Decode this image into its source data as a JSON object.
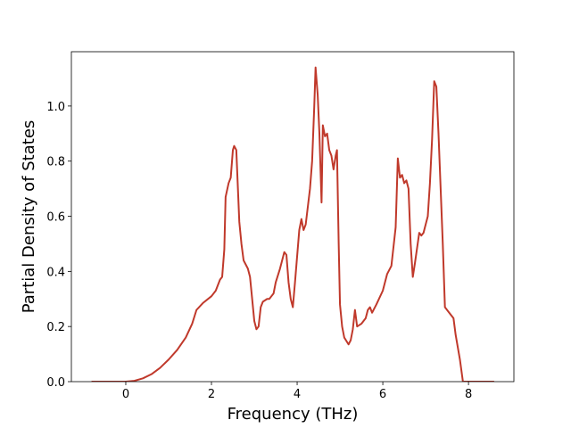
{
  "chart_data": {
    "type": "line",
    "xlabel": "Frequency (THz)",
    "ylabel": "Partial Density of States",
    "x": [
      -0.8,
      0,
      0.2,
      0.4,
      0.6,
      0.8,
      1.0,
      1.2,
      1.4,
      1.55,
      1.65,
      1.8,
      2.0,
      2.1,
      2.2,
      2.25,
      2.3,
      2.33,
      2.4,
      2.45,
      2.5,
      2.53,
      2.58,
      2.65,
      2.7,
      2.75,
      2.85,
      2.9,
      2.95,
      3.0,
      3.05,
      3.1,
      3.15,
      3.2,
      3.3,
      3.35,
      3.4,
      3.45,
      3.5,
      3.6,
      3.7,
      3.75,
      3.8,
      3.85,
      3.9,
      3.95,
      4.05,
      4.1,
      4.15,
      4.2,
      4.3,
      4.35,
      4.4,
      4.43,
      4.48,
      4.52,
      4.57,
      4.6,
      4.65,
      4.7,
      4.75,
      4.8,
      4.85,
      4.9,
      4.93,
      4.97,
      5.0,
      5.05,
      5.1,
      5.2,
      5.25,
      5.3,
      5.35,
      5.4,
      5.5,
      5.6,
      5.65,
      5.7,
      5.75,
      5.85,
      6.0,
      6.1,
      6.2,
      6.3,
      6.35,
      6.4,
      6.45,
      6.5,
      6.55,
      6.6,
      6.65,
      6.7,
      6.75,
      6.85,
      6.9,
      6.95,
      7.05,
      7.1,
      7.15,
      7.2,
      7.25,
      7.3,
      7.4,
      7.45,
      7.55,
      7.65,
      7.7,
      7.8,
      7.87,
      8.6
    ],
    "values": [
      0,
      0,
      0.003,
      0.012,
      0.027,
      0.05,
      0.08,
      0.115,
      0.16,
      0.21,
      0.26,
      0.285,
      0.31,
      0.33,
      0.37,
      0.38,
      0.48,
      0.67,
      0.72,
      0.74,
      0.84,
      0.855,
      0.84,
      0.58,
      0.5,
      0.44,
      0.41,
      0.38,
      0.3,
      0.22,
      0.19,
      0.2,
      0.27,
      0.29,
      0.3,
      0.3,
      0.31,
      0.32,
      0.36,
      0.41,
      0.47,
      0.46,
      0.36,
      0.3,
      0.27,
      0.36,
      0.55,
      0.59,
      0.55,
      0.57,
      0.7,
      0.8,
      1.0,
      1.14,
      1.04,
      0.9,
      0.65,
      0.93,
      0.89,
      0.9,
      0.84,
      0.82,
      0.77,
      0.82,
      0.84,
      0.5,
      0.28,
      0.2,
      0.16,
      0.135,
      0.15,
      0.19,
      0.26,
      0.2,
      0.21,
      0.23,
      0.26,
      0.27,
      0.25,
      0.28,
      0.33,
      0.39,
      0.42,
      0.56,
      0.81,
      0.74,
      0.75,
      0.72,
      0.73,
      0.7,
      0.5,
      0.38,
      0.43,
      0.54,
      0.53,
      0.54,
      0.6,
      0.72,
      0.88,
      1.09,
      1.07,
      0.9,
      0.5,
      0.27,
      0.25,
      0.23,
      0.17,
      0.08,
      0,
      0
    ],
    "color": "#c0392b",
    "xlim": [
      -1.27,
      9.06
    ],
    "xticks": [
      0,
      2,
      4,
      6,
      8
    ],
    "ylim": [
      0,
      1.197
    ],
    "yticks": [
      {
        "value": 0,
        "label": "0.0"
      },
      0.2,
      0.4,
      0.6,
      0.8,
      {
        "value": 1,
        "label": "1.0"
      }
    ]
  }
}
